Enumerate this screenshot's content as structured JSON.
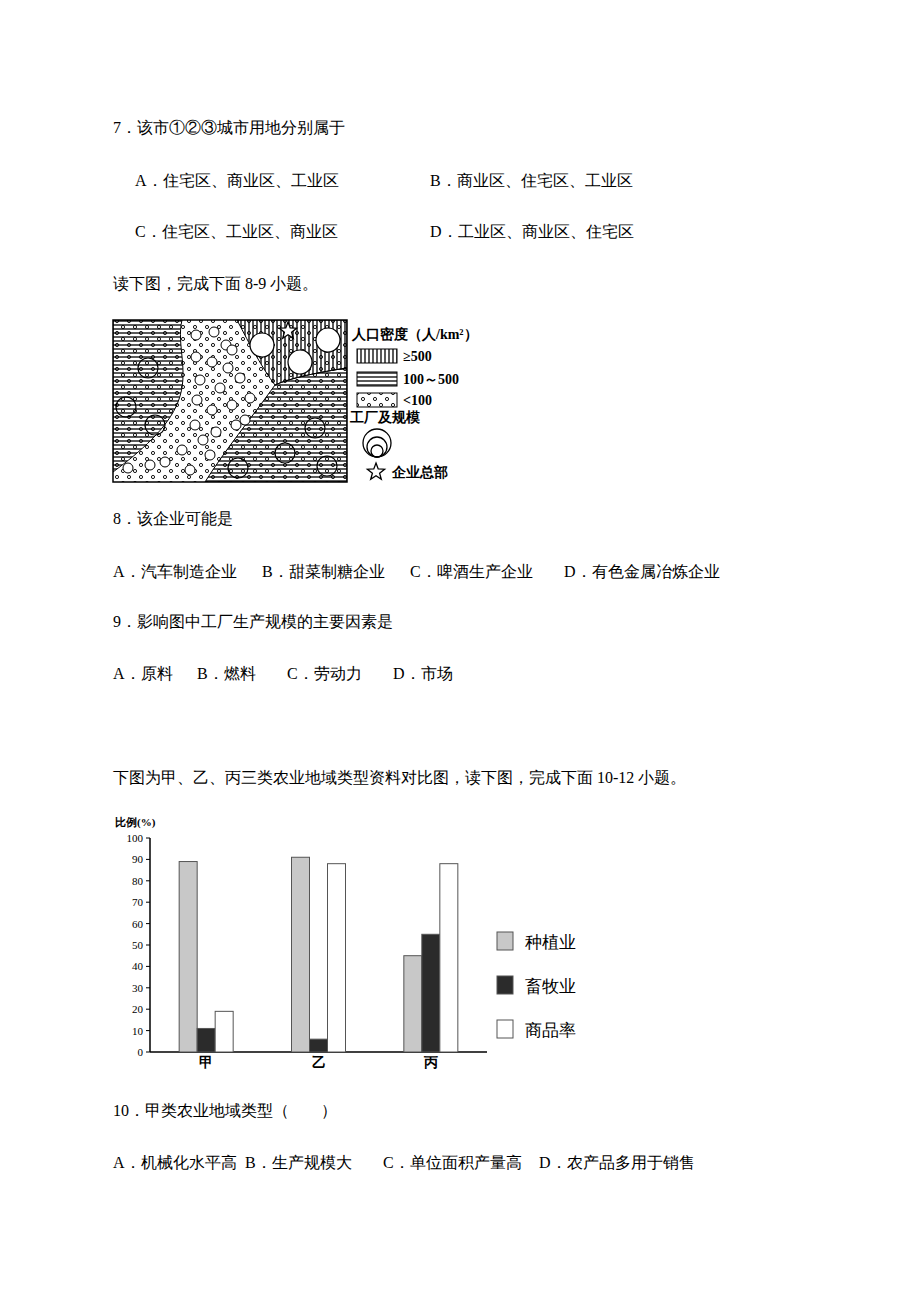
{
  "document": {
    "questions": [
      {
        "stem": "7．该市①②③城市用地分别属于",
        "options": [
          "A．住宅区、商业区、工业区",
          "B．商业区、住宅区、工业区",
          "C．住宅区、工业区、商业区",
          "D．工业区、商业区、住宅区"
        ]
      },
      {
        "stem": "8．该企业可能是",
        "options": [
          "A．汽车制造企业",
          "B．甜菜制糖企业",
          "C．啤酒生产企业",
          "D．有色金属冶炼企业"
        ]
      },
      {
        "stem": "9．影响图中工厂生产规模的主要因素是",
        "options": [
          "A．原料",
          "B．燃料",
          "C．劳动力",
          "D．市场"
        ]
      },
      {
        "stem": "10．甲类农业地域类型（　　）",
        "options": [
          "A．机械化水平高",
          "B．生产规模大",
          "C．单位面积产量高",
          "D．农产品多用于销售"
        ]
      }
    ],
    "intro_8_9": "读下图，完成下面 8-9 小题。",
    "intro_10_12": "下图为甲、乙、丙三类农业地域类型资料对比图，读下图，完成下面 10-12 小题。",
    "map_legend": {
      "title": "人口密度（人/km²）",
      "density": [
        "≥500",
        "100～500",
        "<100"
      ],
      "factory": "工厂及规模",
      "hq": "企业总部"
    }
  },
  "chart_data": {
    "type": "bar",
    "y_label": "比例(%)",
    "categories": [
      "甲",
      "乙",
      "丙"
    ],
    "series": [
      {
        "name": "种植业",
        "color": "#c8c8c8",
        "values": [
          89,
          91,
          45
        ]
      },
      {
        "name": "畜牧业",
        "color": "#2b2b2b",
        "values": [
          11,
          6,
          55
        ]
      },
      {
        "name": "商品率",
        "color": "#ffffff",
        "values": [
          19,
          88,
          88
        ]
      }
    ],
    "ylim": [
      0,
      100
    ],
    "yticks": [
      0,
      10,
      20,
      30,
      40,
      50,
      60,
      70,
      80,
      90,
      100
    ],
    "grid": false,
    "legend": "right"
  }
}
